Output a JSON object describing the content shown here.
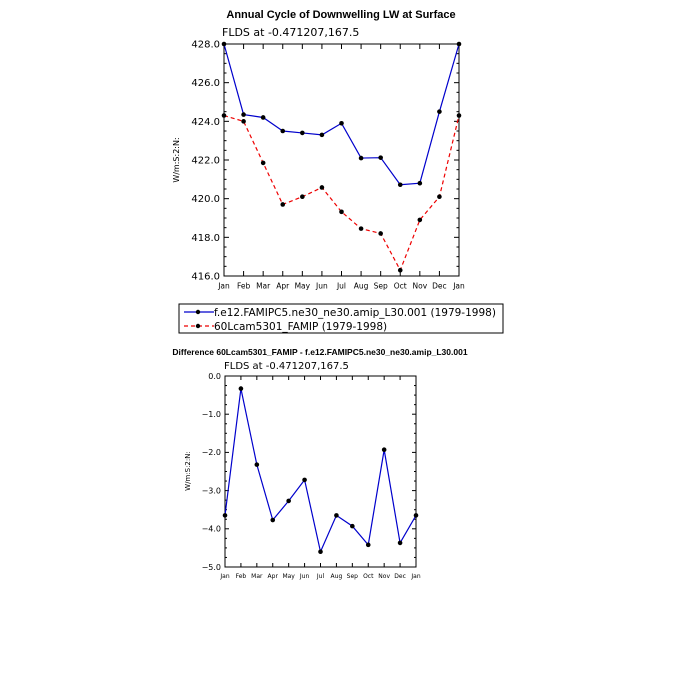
{
  "chart_data": [
    {
      "type": "line",
      "title": "Annual Cycle of Downwelling LW at Surface",
      "subtitle": "FLDS at -0.471207,167.5",
      "ylabel": "W/m:S:2:N:",
      "xlabel": "",
      "categories": [
        "Jan",
        "Feb",
        "Mar",
        "Apr",
        "May",
        "Jun",
        "Jul",
        "Aug",
        "Sep",
        "Oct",
        "Nov",
        "Dec",
        "Jan"
      ],
      "ylim": [
        416.0,
        428.0
      ],
      "yticks": [
        "416.0",
        "418.0",
        "420.0",
        "422.0",
        "424.0",
        "426.0",
        "428.0"
      ],
      "grid": false,
      "legend_position": "bottom",
      "series": [
        {
          "name": "f.e12.FAMIPC5.ne30_ne30.amip_L30.001 (1979-1998)",
          "color": "#0000cc",
          "dash": "solid",
          "values": [
            428.0,
            424.35,
            424.2,
            423.5,
            423.4,
            423.3,
            423.9,
            422.1,
            422.12,
            420.72,
            420.8,
            424.5,
            428.0
          ]
        },
        {
          "name": "60Lcam5301_FAMIP (1979-1998)",
          "color": "#ee0000",
          "dash": "dashed",
          "values": [
            424.3,
            424.0,
            421.85,
            419.7,
            420.1,
            420.58,
            419.32,
            418.45,
            418.2,
            416.3,
            418.9,
            420.1,
            424.3
          ]
        }
      ]
    },
    {
      "type": "line",
      "title": "Difference 60Lcam5301_FAMIP - f.e12.FAMIPC5.ne30_ne30.amip_L30.001",
      "subtitle": "FLDS at -0.471207,167.5",
      "ylabel": "W/m:S:2:N:",
      "xlabel": "",
      "categories": [
        "Jan",
        "Feb",
        "Mar",
        "Apr",
        "May",
        "Jun",
        "Jul",
        "Aug",
        "Sep",
        "Oct",
        "Nov",
        "Dec",
        "Jan"
      ],
      "ylim": [
        -5.0,
        0.0
      ],
      "yticks": [
        "-5.0",
        "-4.0",
        "-3.0",
        "-2.0",
        "-1.0",
        "0.0"
      ],
      "grid": false,
      "series": [
        {
          "color": "#0000cc",
          "dash": "solid",
          "values": [
            -3.65,
            -0.33,
            -2.32,
            -3.77,
            -3.27,
            -2.72,
            -4.6,
            -3.65,
            -3.93,
            -4.42,
            -1.93,
            -4.37,
            -3.65
          ]
        }
      ]
    }
  ]
}
